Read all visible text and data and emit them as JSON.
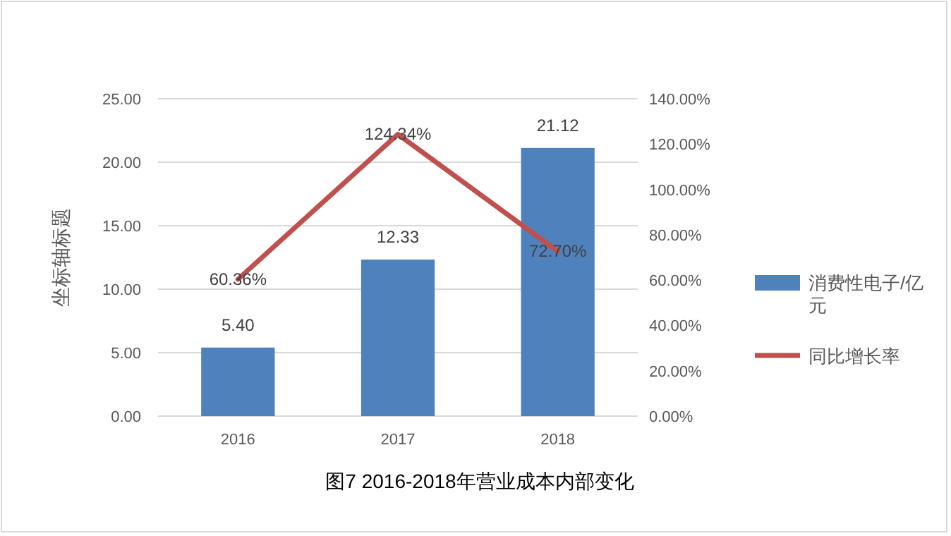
{
  "chart_data": {
    "type": "bar",
    "title": "图7 2016-2018年营业成本内部变化",
    "ylabel": "坐标轴标题",
    "categories": [
      "2016",
      "2017",
      "2018"
    ],
    "series": [
      {
        "name": "消费性电子/亿元",
        "color": "#4f81bd",
        "values": [
          5.4,
          12.33,
          21.12
        ],
        "value_labels": [
          "5.40",
          "12.33",
          "21.12"
        ]
      },
      {
        "name": "同比增长率",
        "type": "line",
        "axis": "y2",
        "color": "#c0504d",
        "values": [
          60.36,
          124.34,
          72.7
        ],
        "value_labels": [
          "60.36%",
          "124.34%",
          "72.70%"
        ]
      }
    ],
    "ylim": [
      0,
      25
    ],
    "yticks": [
      {
        "value": 0,
        "label": "0.00"
      },
      {
        "value": 5,
        "label": "5.00"
      },
      {
        "value": 10,
        "label": "10.00"
      },
      {
        "value": 15,
        "label": "15.00"
      },
      {
        "value": 20,
        "label": "20.00"
      },
      {
        "value": 25,
        "label": "25.00"
      }
    ],
    "y2lim": [
      0,
      140
    ],
    "y2ticks": [
      {
        "value": 0,
        "label": "0.00%"
      },
      {
        "value": 20,
        "label": "20.00%"
      },
      {
        "value": 40,
        "label": "40.00%"
      },
      {
        "value": 60,
        "label": "60.00%"
      },
      {
        "value": 80,
        "label": "80.00%"
      },
      {
        "value": 100,
        "label": "100.00%"
      },
      {
        "value": 120,
        "label": "120.00%"
      },
      {
        "value": 140,
        "label": "140.00%"
      }
    ],
    "grid": "y",
    "legend": "right",
    "marker": "none",
    "line_style": "solid"
  }
}
